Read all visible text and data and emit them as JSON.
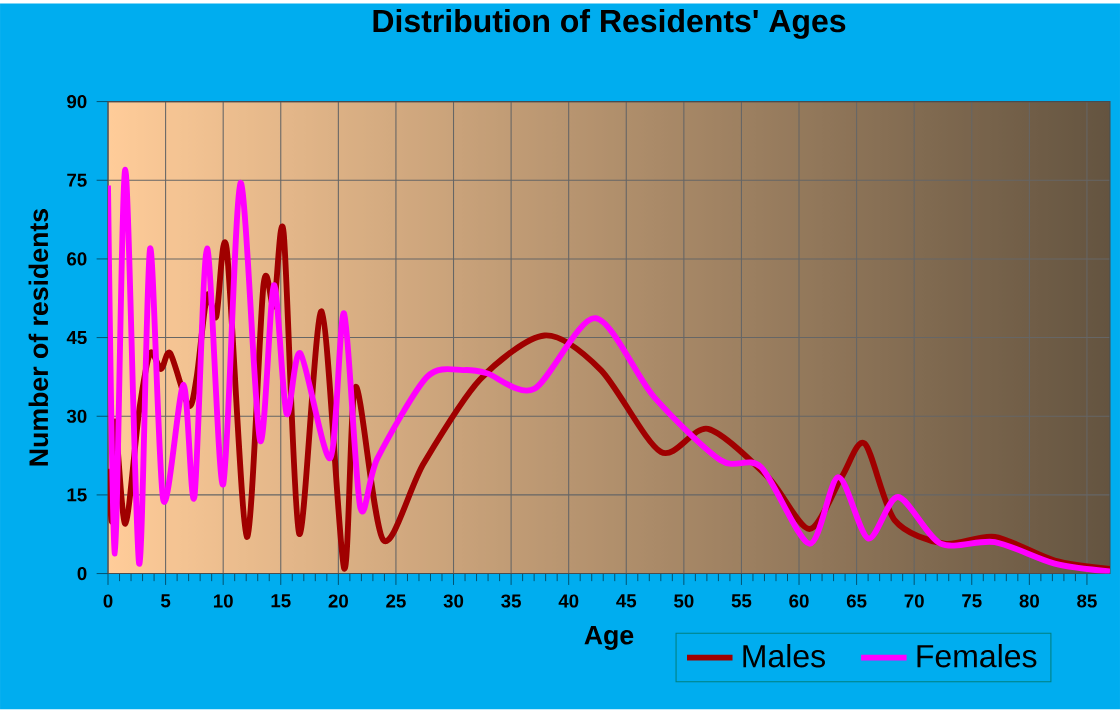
{
  "chart_data": {
    "type": "line",
    "title": "Distribution of Residents' Ages",
    "xlabel": "Age",
    "ylabel": "Number of residents",
    "xlim": [
      0,
      87
    ],
    "xticks": [
      0,
      5,
      10,
      15,
      20,
      25,
      30,
      35,
      40,
      45,
      50,
      55,
      60,
      65,
      70,
      75,
      80,
      85
    ],
    "ylim": [
      0,
      90
    ],
    "yticks": [
      0,
      15,
      30,
      45,
      60,
      75,
      90
    ],
    "grid": true,
    "legend": "bottom",
    "series": [
      {
        "name": "Males",
        "color": "#a00000",
        "x": [
          0,
          0.35,
          0.6,
          1.5,
          2.7,
          3.65,
          4.6,
          5.4,
          7.0,
          7.7,
          8.6,
          9.4,
          10.3,
          12.05,
          13.5,
          14.4,
          15.25,
          16.6,
          18.55,
          20.5,
          21.5,
          23.9,
          27.4,
          32.3,
          37.9,
          42.8,
          48,
          52.1,
          57.3,
          60.9,
          63.7,
          65.7,
          68.3,
          72.6,
          77,
          82.2,
          87
        ],
        "values": [
          20,
          10,
          29,
          9.5,
          31,
          42,
          39,
          42,
          32,
          37.5,
          53,
          49,
          62,
          7,
          55,
          51,
          65,
          7.6,
          50,
          1,
          35.6,
          6.4,
          21,
          37,
          45.4,
          38.8,
          23.2,
          27.6,
          18.4,
          8.5,
          18.4,
          24.8,
          10.2,
          5.7,
          7,
          2.5,
          0.9
        ]
      },
      {
        "name": "Females",
        "color": "#ff00ff",
        "x": [
          0,
          0.6,
          1.5,
          2.7,
          3.65,
          4.8,
          6.55,
          7.5,
          8.6,
          10,
          11.5,
          13.2,
          14.4,
          15.5,
          16.7,
          19.3,
          20.5,
          21.9,
          23.4,
          27.7,
          30.9,
          32.9,
          37,
          42.3,
          47.4,
          53.2,
          56.7,
          60.9,
          63.4,
          66,
          68.6,
          72.3,
          77,
          82.2,
          87
        ],
        "values": [
          74,
          3.8,
          77,
          1.9,
          62,
          14,
          36,
          14.6,
          62,
          17,
          74.5,
          25.4,
          55,
          30.5,
          42,
          22,
          49.6,
          12.7,
          22,
          37.5,
          38.8,
          38.2,
          35.2,
          48.7,
          33.7,
          21.6,
          20.3,
          5.7,
          18.4,
          6.7,
          14.6,
          5.7,
          6,
          1.9,
          0.4
        ]
      }
    ]
  }
}
